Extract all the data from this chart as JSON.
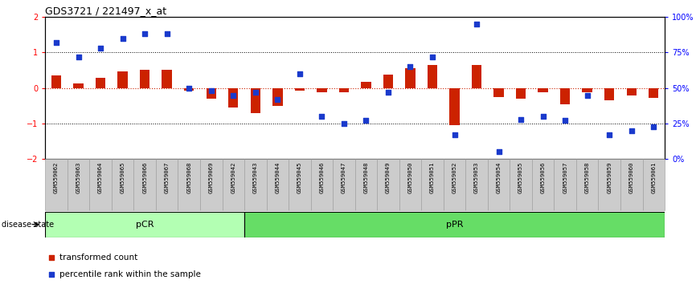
{
  "title": "GDS3721 / 221497_x_at",
  "samples": [
    "GSM559062",
    "GSM559063",
    "GSM559064",
    "GSM559065",
    "GSM559066",
    "GSM559067",
    "GSM559068",
    "GSM559069",
    "GSM559042",
    "GSM559043",
    "GSM559044",
    "GSM559045",
    "GSM559046",
    "GSM559047",
    "GSM559048",
    "GSM559049",
    "GSM559050",
    "GSM559051",
    "GSM559052",
    "GSM559053",
    "GSM559054",
    "GSM559055",
    "GSM559056",
    "GSM559057",
    "GSM559058",
    "GSM559059",
    "GSM559060",
    "GSM559061"
  ],
  "transformed_count": [
    0.35,
    0.12,
    0.28,
    0.48,
    0.52,
    0.52,
    -0.08,
    -0.3,
    -0.55,
    -0.7,
    -0.5,
    -0.08,
    -0.12,
    -0.12,
    0.18,
    0.38,
    0.55,
    0.65,
    -1.05,
    0.65,
    -0.25,
    -0.3,
    -0.12,
    -0.45,
    -0.12,
    -0.35,
    -0.22,
    -0.28
  ],
  "percentile_rank": [
    82,
    72,
    78,
    85,
    88,
    88,
    50,
    48,
    45,
    47,
    42,
    60,
    30,
    25,
    27,
    47,
    65,
    72,
    17,
    95,
    5,
    28,
    30,
    27,
    45,
    17,
    20,
    23
  ],
  "pCR_count": 9,
  "pPR_count": 19,
  "pCR_color": "#b3ffb3",
  "pPR_color": "#66dd66",
  "bar_color": "#cc2200",
  "dot_color": "#1a3acc",
  "ylim": [
    -2.0,
    2.0
  ],
  "y2lim": [
    0,
    100
  ],
  "yticks": [
    -2,
    -1,
    0,
    1,
    2
  ],
  "y2ticks": [
    0,
    25,
    50,
    75,
    100
  ],
  "y2ticklabels": [
    "0%",
    "25%",
    "50%",
    "75%",
    "100%"
  ],
  "legend_transformed": "transformed count",
  "legend_percentile": "percentile rank within the sample",
  "disease_state_label": "disease state",
  "pCR_label": "pCR",
  "pPR_label": "pPR",
  "background_color": "#ffffff",
  "bar_width": 0.45,
  "xtick_bg": "#cccccc",
  "xtick_border": "#aaaaaa"
}
